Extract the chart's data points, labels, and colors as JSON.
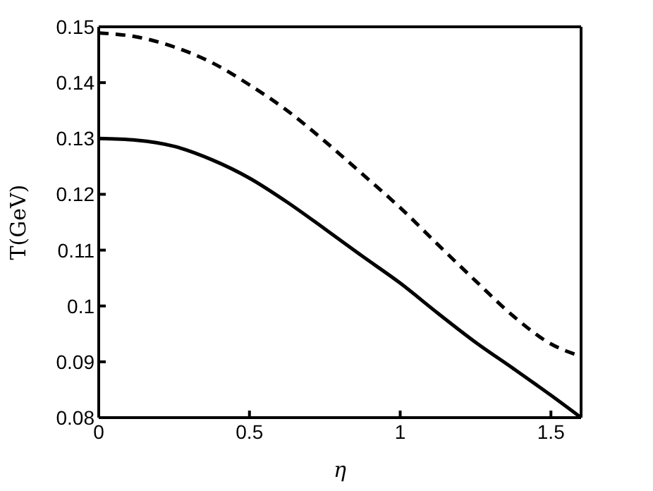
{
  "chart_data": {
    "type": "line",
    "xlabel": "η",
    "ylabel": "T(GeV)",
    "x": [
      0,
      0.125,
      0.25,
      0.375,
      0.5,
      0.625,
      0.75,
      0.875,
      1,
      1.125,
      1.25,
      1.375,
      1.5,
      1.6
    ],
    "series": [
      {
        "color": "#000000",
        "line_style": "solid",
        "values": [
          0.13,
          0.1297,
          0.1286,
          0.1262,
          0.1229,
          0.1186,
          0.1138,
          0.1089,
          0.1041,
          0.0987,
          0.0935,
          0.0888,
          0.084,
          0.08
        ]
      },
      {
        "color": "#000000",
        "line_style": "dashed",
        "values": [
          0.1489,
          0.1482,
          0.1464,
          0.1436,
          0.1396,
          0.135,
          0.1295,
          0.1236,
          0.1176,
          0.111,
          0.1045,
          0.0982,
          0.0932,
          0.091
        ]
      }
    ],
    "xlim": [
      0,
      1.6
    ],
    "xticks": [
      0,
      0.5,
      1,
      1.5
    ],
    "ylim": [
      0.08,
      0.15
    ],
    "yticks": [
      0.08,
      0.09,
      0.1,
      0.11,
      0.12,
      0.13,
      0.14,
      0.15
    ],
    "marker": "none"
  }
}
